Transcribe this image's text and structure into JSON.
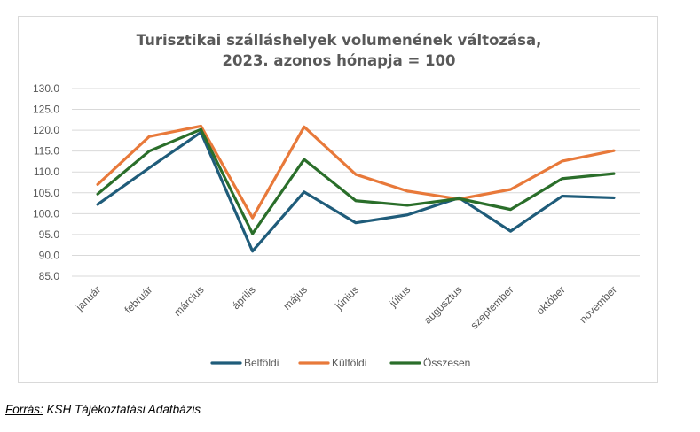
{
  "chart_data": {
    "type": "line",
    "title": "Turisztikai szálláshelyek volumenének változása,",
    "subtitle": "2023. azonos hónapja = 100",
    "xlabel": "",
    "ylabel": "",
    "categories": [
      "január",
      "február",
      "március",
      "április",
      "május",
      "június",
      "július",
      "augusztus",
      "szeptember",
      "október",
      "november"
    ],
    "ylim": [
      85.0,
      130.0
    ],
    "yticks": [
      "130.0",
      "125.0",
      "120.0",
      "115.0",
      "110.0",
      "105.0",
      "100.0",
      "95.0",
      "90.0",
      "85.0"
    ],
    "grid": true,
    "legend_position": "bottom",
    "series": [
      {
        "name": "Belföldi",
        "color": "#1f5c7a",
        "values": [
          102.2,
          111.0,
          119.5,
          91.0,
          105.2,
          97.8,
          99.7,
          103.8,
          95.8,
          104.2,
          103.8
        ]
      },
      {
        "name": "Külföldi",
        "color": "#e8793a",
        "values": [
          107.0,
          118.5,
          121.0,
          99.0,
          120.8,
          109.4,
          105.4,
          103.5,
          105.8,
          112.6,
          115.1
        ]
      },
      {
        "name": "Összesen",
        "color": "#2a6e2a",
        "values": [
          104.7,
          115.0,
          120.2,
          95.2,
          113.0,
          103.1,
          102.0,
          103.6,
          101.0,
          108.4,
          109.6
        ]
      }
    ]
  },
  "source": {
    "label": "Forrás:",
    "text": " KSH Tájékoztatási Adatbázis"
  }
}
